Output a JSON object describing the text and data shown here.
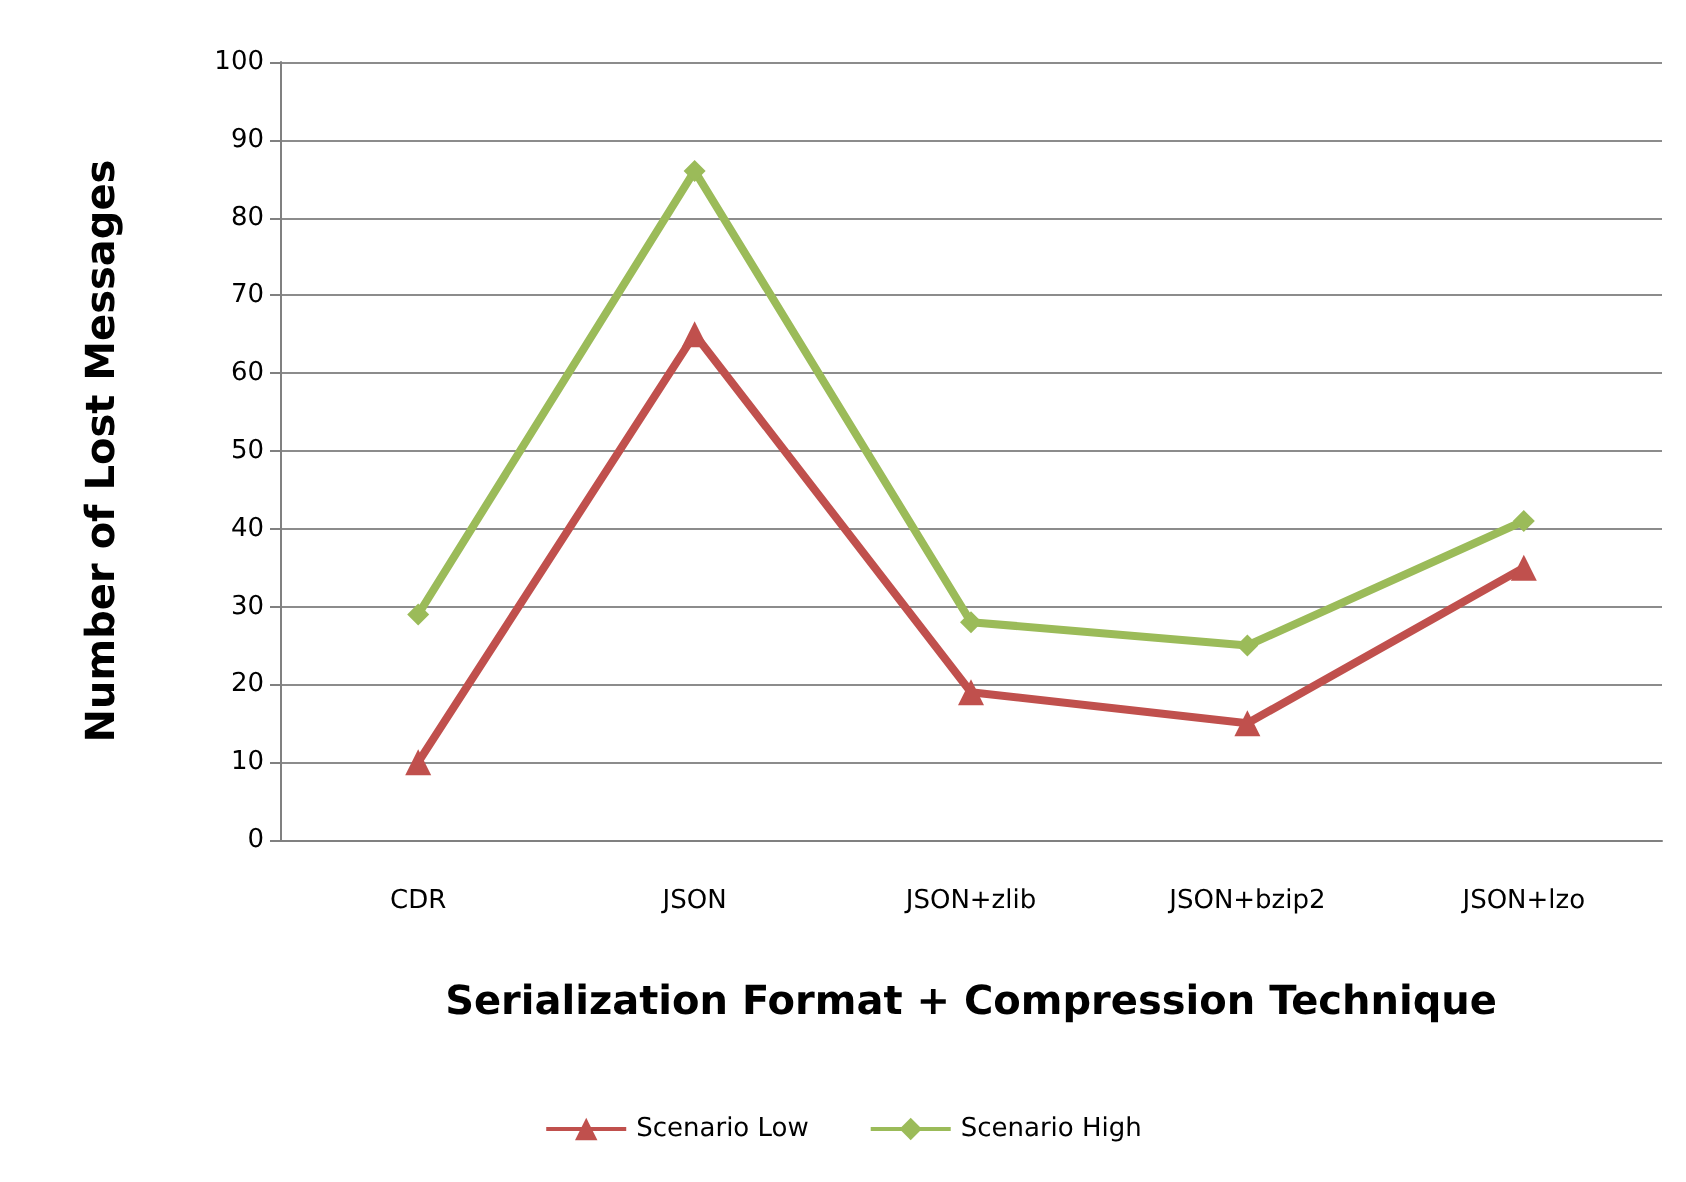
{
  "chart_data": {
    "type": "line",
    "xlabel": "Serialization Format + Compression Technique",
    "ylabel": "Number of Lost Messages",
    "categories": [
      "CDR",
      "JSON",
      "JSON+zlib",
      "JSON+bzip2",
      "JSON+lzo"
    ],
    "series": [
      {
        "name": "Scenario Low",
        "color": "#c0504d",
        "marker": "triangle",
        "values": [
          10,
          65,
          19,
          15,
          35
        ]
      },
      {
        "name": "Scenario High",
        "color": "#9bbb59",
        "marker": "diamond",
        "values": [
          29,
          86,
          28,
          25,
          41
        ]
      }
    ],
    "ylim": [
      0,
      100
    ],
    "yticks": [
      0,
      10,
      20,
      30,
      40,
      50,
      60,
      70,
      80,
      90,
      100
    ],
    "grid": "y",
    "legend": "bottom"
  }
}
